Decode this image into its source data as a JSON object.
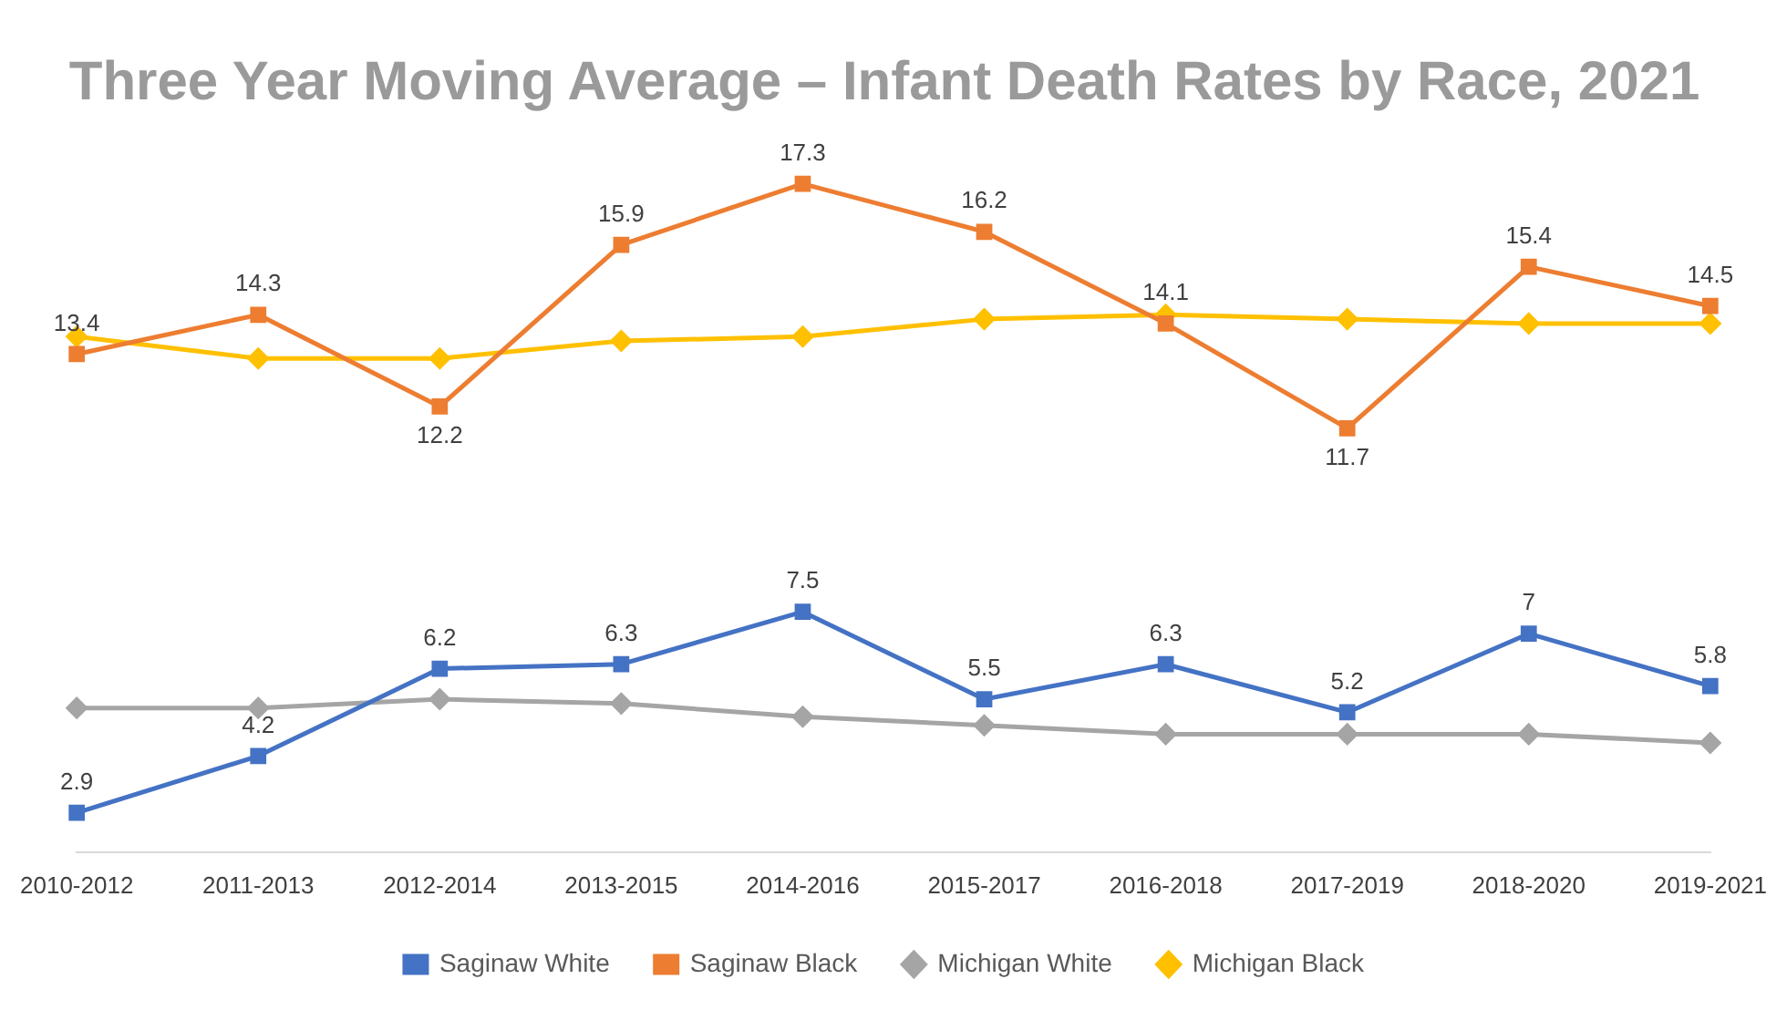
{
  "chart_data": {
    "type": "line",
    "title": "Three Year Moving Average – Infant Death Rates by Race, 2021",
    "categories": [
      "2010-2012",
      "2011-2013",
      "2012-2014",
      "2013-2015",
      "2014-2016",
      "2015-2017",
      "2016-2018",
      "2017-2019",
      "2018-2020",
      "2019-2021"
    ],
    "series": [
      {
        "name": "Saginaw White",
        "color": "#4472c4",
        "marker": "square",
        "values": [
          2.9,
          4.2,
          6.2,
          6.3,
          7.5,
          5.5,
          6.3,
          5.2,
          7,
          5.8
        ],
        "value_labels": [
          "2.9",
          "4.2",
          "6.2",
          "6.3",
          "7.5",
          "5.5",
          "6.3",
          "5.2",
          "7",
          "5.8"
        ]
      },
      {
        "name": "Saginaw Black",
        "color": "#ed7d31",
        "marker": "square",
        "values": [
          13.4,
          14.3,
          12.2,
          15.9,
          17.3,
          16.2,
          14.1,
          11.7,
          15.4,
          14.5
        ],
        "value_labels": [
          "13.4",
          "14.3",
          "12.2",
          "15.9",
          "17.3",
          "16.2",
          "14.1",
          "11.7",
          "15.4",
          "14.5"
        ]
      },
      {
        "name": "Michigan White",
        "color": "#a5a5a5",
        "marker": "diamond",
        "values": [
          5.3,
          5.3,
          5.5,
          5.4,
          5.1,
          4.9,
          4.7,
          4.7,
          4.7,
          4.5
        ]
      },
      {
        "name": "Michigan Black",
        "color": "#ffc000",
        "marker": "diamond",
        "values": [
          13.8,
          13.3,
          13.3,
          13.7,
          13.8,
          14.2,
          14.3,
          14.2,
          14.1,
          14.1
        ]
      }
    ],
    "tick_labels": "x",
    "grid": false,
    "legend": "bottom"
  }
}
